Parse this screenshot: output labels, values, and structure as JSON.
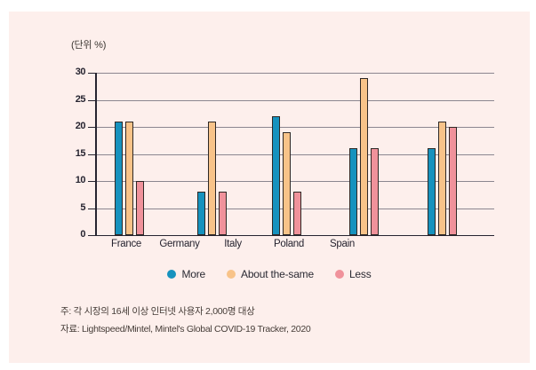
{
  "panel": {
    "background": "#fdefec"
  },
  "unit_label": "(단위 %)",
  "chart_data": {
    "type": "bar",
    "categories": [
      "France",
      "Germany",
      "Italy",
      "Poland",
      "Spain"
    ],
    "series": [
      {
        "name": "More",
        "color": "#1692be",
        "values": [
          21,
          8,
          22,
          16,
          16
        ]
      },
      {
        "name": "About the-same",
        "color": "#f8c389",
        "values": [
          21,
          21,
          19,
          29,
          21
        ]
      },
      {
        "name": "Less",
        "color": "#f0929b",
        "values": [
          10,
          8,
          8,
          16,
          20
        ]
      }
    ],
    "title": "",
    "xlabel": "",
    "ylabel": "(단위 %)",
    "ylim": [
      0,
      30
    ],
    "yticks": [
      0,
      5,
      10,
      15,
      20,
      25,
      30
    ],
    "grid": true,
    "legend_position": "bottom",
    "bar_outline_color": "#2e2825",
    "gridline_color": "#8b8690",
    "axis_color": "#262430"
  },
  "footer": {
    "note": "주: 각 시장의 16세 이상 인터넷 사용자 2,000명 대상",
    "source": "자료: Lightspeed/Mintel, Mintel's Global COVID-19 Tracker, 2020"
  }
}
